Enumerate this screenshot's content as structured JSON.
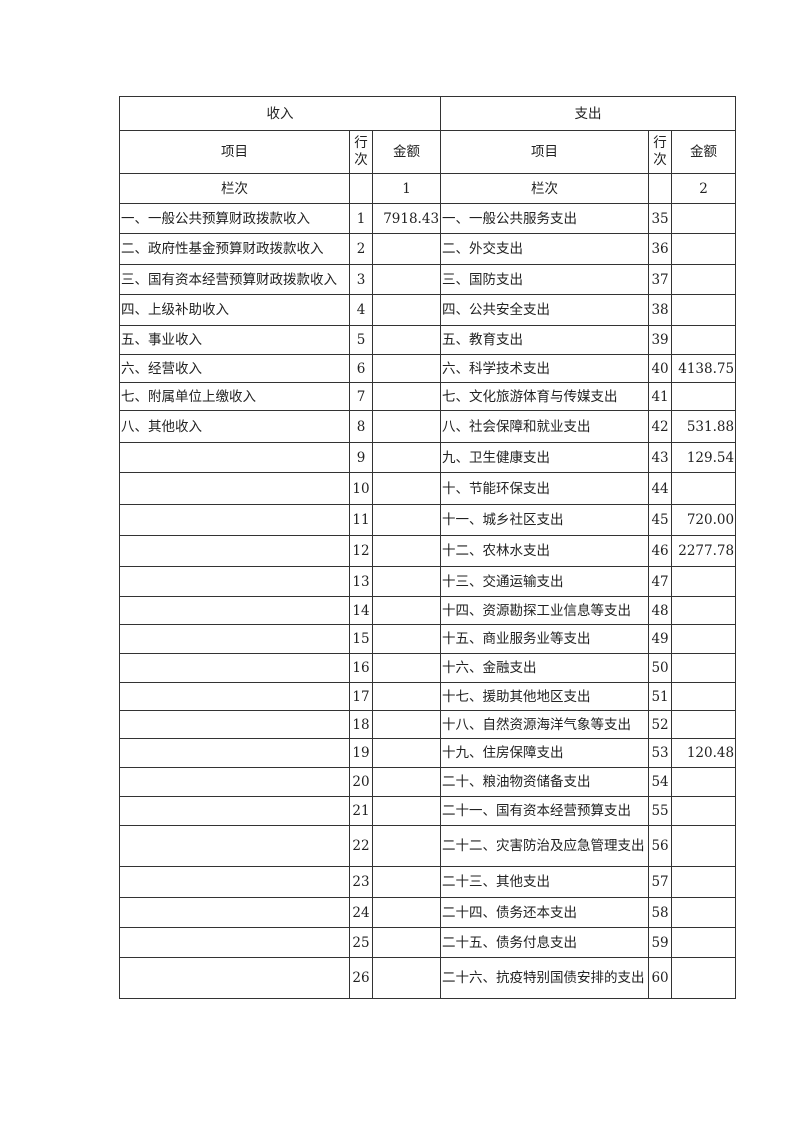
{
  "header": {
    "income": "收入",
    "expense": "支出",
    "item": "项目",
    "row_no_1": "行",
    "row_no_2": "次",
    "amount": "金额",
    "column_label": "栏次",
    "income_col_no": "1",
    "expense_col_no": "2"
  },
  "rows": [
    {
      "in_item": "一、一般公共预算财政拨款收入",
      "in_no": "1",
      "in_amt": "7918.43",
      "ex_item": "一、一般公共服务支出",
      "ex_no": "35",
      "ex_amt": ""
    },
    {
      "in_item": "二、政府性基金预算财政拨款收入",
      "in_no": "2",
      "in_amt": "",
      "ex_item": "二、外交支出",
      "ex_no": "36",
      "ex_amt": ""
    },
    {
      "in_item": "三、国有资本经营预算财政拨款收入",
      "in_no": "3",
      "in_amt": "",
      "ex_item": "三、国防支出",
      "ex_no": "37",
      "ex_amt": ""
    },
    {
      "in_item": "四、上级补助收入",
      "in_no": "4",
      "in_amt": "",
      "ex_item": "四、公共安全支出",
      "ex_no": "38",
      "ex_amt": ""
    },
    {
      "in_item": "五、事业收入",
      "in_no": "5",
      "in_amt": "",
      "ex_item": "五、教育支出",
      "ex_no": "39",
      "ex_amt": ""
    },
    {
      "in_item": "六、经营收入",
      "in_no": "6",
      "in_amt": "",
      "ex_item": "六、科学技术支出",
      "ex_no": "40",
      "ex_amt": "4138.75"
    },
    {
      "in_item": "七、附属单位上缴收入",
      "in_no": "7",
      "in_amt": "",
      "ex_item": "七、文化旅游体育与传媒支出",
      "ex_no": "41",
      "ex_amt": ""
    },
    {
      "in_item": "八、其他收入",
      "in_no": "8",
      "in_amt": "",
      "ex_item": "八、社会保障和就业支出",
      "ex_no": "42",
      "ex_amt": "531.88"
    },
    {
      "in_item": "",
      "in_no": "9",
      "in_amt": "",
      "ex_item": "九、卫生健康支出",
      "ex_no": "43",
      "ex_amt": "129.54"
    },
    {
      "in_item": "",
      "in_no": "10",
      "in_amt": "",
      "ex_item": "十、节能环保支出",
      "ex_no": "44",
      "ex_amt": ""
    },
    {
      "in_item": "",
      "in_no": "11",
      "in_amt": "",
      "ex_item": "十一、城乡社区支出",
      "ex_no": "45",
      "ex_amt": "720.00"
    },
    {
      "in_item": "",
      "in_no": "12",
      "in_amt": "",
      "ex_item": "十二、农林水支出",
      "ex_no": "46",
      "ex_amt": "2277.78"
    },
    {
      "in_item": "",
      "in_no": "13",
      "in_amt": "",
      "ex_item": "十三、交通运输支出",
      "ex_no": "47",
      "ex_amt": ""
    },
    {
      "in_item": "",
      "in_no": "14",
      "in_amt": "",
      "ex_item": "十四、资源勘探工业信息等支出",
      "ex_no": "48",
      "ex_amt": ""
    },
    {
      "in_item": "",
      "in_no": "15",
      "in_amt": "",
      "ex_item": "十五、商业服务业等支出",
      "ex_no": "49",
      "ex_amt": ""
    },
    {
      "in_item": "",
      "in_no": "16",
      "in_amt": "",
      "ex_item": "十六、金融支出",
      "ex_no": "50",
      "ex_amt": ""
    },
    {
      "in_item": "",
      "in_no": "17",
      "in_amt": "",
      "ex_item": "十七、援助其他地区支出",
      "ex_no": "51",
      "ex_amt": ""
    },
    {
      "in_item": "",
      "in_no": "18",
      "in_amt": "",
      "ex_item": "十八、自然资源海洋气象等支出",
      "ex_no": "52",
      "ex_amt": ""
    },
    {
      "in_item": "",
      "in_no": "19",
      "in_amt": "",
      "ex_item": "十九、住房保障支出",
      "ex_no": "53",
      "ex_amt": "120.48"
    },
    {
      "in_item": "",
      "in_no": "20",
      "in_amt": "",
      "ex_item": "二十、粮油物资储备支出",
      "ex_no": "54",
      "ex_amt": ""
    },
    {
      "in_item": "",
      "in_no": "21",
      "in_amt": "",
      "ex_item": "二十一、国有资本经营预算支出",
      "ex_no": "55",
      "ex_amt": ""
    },
    {
      "in_item": "",
      "in_no": "22",
      "in_amt": "",
      "ex_item": "二十二、灾害防治及应急管理支出",
      "ex_no": "56",
      "ex_amt": ""
    },
    {
      "in_item": "",
      "in_no": "23",
      "in_amt": "",
      "ex_item": "二十三、其他支出",
      "ex_no": "57",
      "ex_amt": ""
    },
    {
      "in_item": "",
      "in_no": "24",
      "in_amt": "",
      "ex_item": "二十四、债务还本支出",
      "ex_no": "58",
      "ex_amt": ""
    },
    {
      "in_item": "",
      "in_no": "25",
      "in_amt": "",
      "ex_item": "二十五、债务付息支出",
      "ex_no": "59",
      "ex_amt": ""
    },
    {
      "in_item": "",
      "in_no": "26",
      "in_amt": "",
      "ex_item": "二十六、抗疫特别国债安排的支出",
      "ex_no": "60",
      "ex_amt": ""
    }
  ]
}
